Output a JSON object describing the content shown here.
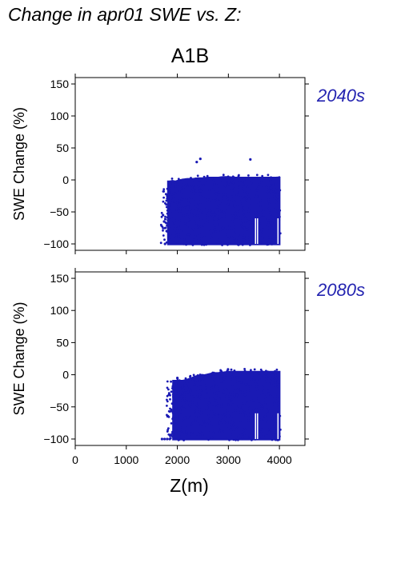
{
  "page": {
    "title": "Change in apr01 SWE vs. Z:"
  },
  "colors": {
    "points": "#1a1ab4",
    "period_label": "#2323b0",
    "axis": "#000000"
  },
  "chart_data": [
    {
      "type": "scatter",
      "title": "A1B",
      "panel_label": "2040s",
      "xlabel": "",
      "ylabel": "SWE Change (%)",
      "xlim": [
        0,
        4500
      ],
      "ylim": [
        -110,
        160
      ],
      "yticks": [
        -100,
        -50,
        0,
        50,
        100,
        150
      ],
      "xticks": [
        0,
        1000,
        2000,
        3000,
        4000
      ],
      "x_tick_labels_shown": false,
      "grid": false,
      "series": [
        {
          "points_outliers": [
            [
              2450,
              33
            ],
            [
              2380,
              28
            ],
            [
              3430,
              32
            ],
            [
              1720,
              -55
            ],
            [
              1740,
              -65
            ],
            [
              1760,
              -100
            ],
            [
              1790,
              -80
            ]
          ],
          "envelope": [
            [
              1800,
              -102,
              2
            ],
            [
              1850,
              -102,
              2
            ],
            [
              1900,
              -102,
              3
            ],
            [
              1960,
              -102,
              2
            ],
            [
              2000,
              -102,
              3
            ],
            [
              2050,
              -102,
              4
            ],
            [
              2100,
              -102,
              5
            ],
            [
              2200,
              -102,
              6
            ],
            [
              2300,
              -102,
              6
            ],
            [
              2400,
              -102,
              7
            ],
            [
              2500,
              -102,
              7
            ],
            [
              2600,
              -102,
              8
            ],
            [
              2700,
              -102,
              8
            ],
            [
              2800,
              -102,
              8
            ],
            [
              2900,
              -102,
              9
            ],
            [
              3000,
              -102,
              9
            ],
            [
              3100,
              -102,
              8
            ],
            [
              3200,
              -102,
              8
            ],
            [
              3300,
              -102,
              8
            ],
            [
              3400,
              -102,
              8
            ],
            [
              3500,
              -102,
              8
            ],
            [
              3600,
              -102,
              8
            ],
            [
              3700,
              -102,
              8
            ],
            [
              3800,
              -102,
              8
            ],
            [
              3900,
              -102,
              8
            ],
            [
              4020,
              -102,
              8
            ]
          ]
        }
      ]
    },
    {
      "type": "scatter",
      "title": "",
      "panel_label": "2080s",
      "xlabel": "Z(m)",
      "ylabel": "SWE Change (%)",
      "xlim": [
        0,
        4500
      ],
      "ylim": [
        -110,
        160
      ],
      "yticks": [
        -100,
        -50,
        0,
        50,
        100,
        150
      ],
      "xticks": [
        0,
        1000,
        2000,
        3000,
        4000
      ],
      "x_tick_labels_shown": true,
      "grid": false,
      "series": [
        {
          "points_outliers": [
            [
              1700,
              -100
            ],
            [
              1750,
              -100
            ],
            [
              1800,
              -100
            ],
            [
              1850,
              -100
            ],
            [
              2000,
              -5
            ],
            [
              1950,
              -30
            ]
          ],
          "envelope": [
            [
              1900,
              -102,
              -5
            ],
            [
              2000,
              -102,
              -5
            ],
            [
              2100,
              -102,
              -5
            ],
            [
              2200,
              -102,
              -3
            ],
            [
              2300,
              -102,
              0
            ],
            [
              2400,
              -102,
              3
            ],
            [
              2500,
              -102,
              3
            ],
            [
              2600,
              -102,
              5
            ],
            [
              2700,
              -102,
              7
            ],
            [
              2800,
              -102,
              7
            ],
            [
              2900,
              -102,
              8
            ],
            [
              3000,
              -102,
              9
            ],
            [
              3100,
              -102,
              9
            ],
            [
              3200,
              -102,
              9
            ],
            [
              3300,
              -102,
              9
            ],
            [
              3400,
              -102,
              9
            ],
            [
              3500,
              -102,
              9
            ],
            [
              3600,
              -102,
              9
            ],
            [
              3700,
              -102,
              9
            ],
            [
              3800,
              -102,
              9
            ],
            [
              3900,
              -102,
              9
            ],
            [
              4020,
              -102,
              9
            ]
          ]
        }
      ]
    }
  ]
}
